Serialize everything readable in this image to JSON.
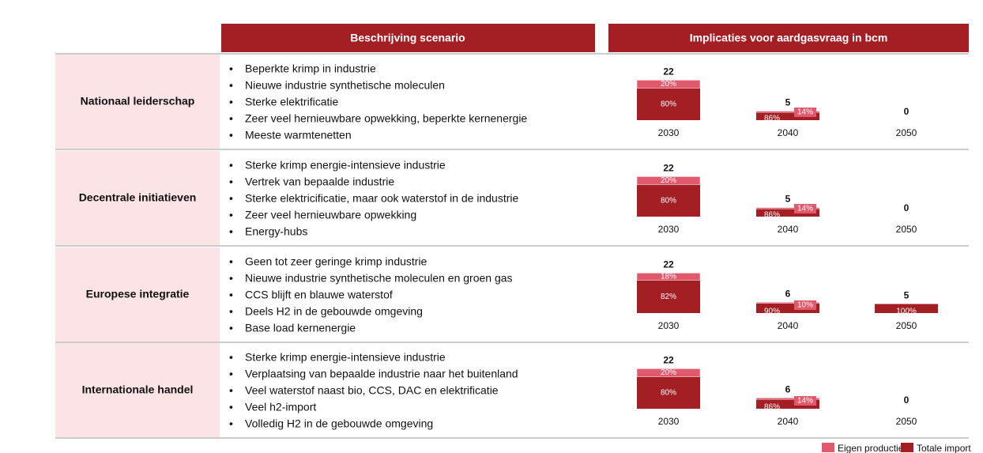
{
  "header": {
    "description": "Beschrijving scenario",
    "implications": "Implicaties voor aardgasvraag in bcm"
  },
  "legend": [
    {
      "name": "Eigen productie",
      "color": "#e0596c"
    },
    {
      "name": "Totale import",
      "color": "#a31f24"
    }
  ],
  "scenarios": [
    {
      "name": "Nationaal leiderschap",
      "bullets": [
        "Beperkte krimp in industrie",
        "Nieuwe industrie synthetische moleculen",
        "Sterke elektrificatie",
        "Zeer veel hernieuwbare opwekking, beperkte kernenergie",
        "Meeste warmtenetten"
      ],
      "chart": {
        "type": "bar",
        "categories": [
          "2030",
          "2040",
          "2050"
        ],
        "totals": [
          22,
          5,
          0
        ],
        "own": [
          20,
          14,
          null
        ],
        "own_labels": [
          "20%",
          "14%",
          null
        ],
        "import": [
          80,
          86,
          null
        ],
        "import_labels": [
          "80%",
          "86%",
          null
        ]
      }
    },
    {
      "name": "Decentrale initiatieven",
      "bullets": [
        "Sterke krimp energie-intensieve industrie",
        "Vertrek van bepaalde industrie",
        "Sterke elektricificatie, maar ook waterstof in de industrie",
        "Zeer veel hernieuwbare opwekking",
        "Energy-hubs"
      ],
      "chart": {
        "type": "bar",
        "categories": [
          "2030",
          "2040",
          "2050"
        ],
        "totals": [
          22,
          5,
          0
        ],
        "own": [
          20,
          14,
          null
        ],
        "own_labels": [
          "20%",
          "14%",
          null
        ],
        "import": [
          80,
          86,
          null
        ],
        "import_labels": [
          "80%",
          "86%",
          null
        ]
      }
    },
    {
      "name": "Europese integratie",
      "bullets": [
        "Geen tot zeer geringe krimp industrie",
        "Nieuwe industrie synthetische moleculen en groen gas",
        "CCS blijft en blauwe waterstof",
        "Deels H2 in de gebouwde omgeving",
        "Base load kernenergie"
      ],
      "chart": {
        "type": "bar",
        "categories": [
          "2030",
          "2040",
          "2050"
        ],
        "totals": [
          22,
          6,
          5
        ],
        "own": [
          18,
          10,
          null
        ],
        "own_labels": [
          "18%",
          "10%",
          null
        ],
        "import": [
          82,
          90,
          100
        ],
        "import_labels": [
          "82%",
          "90%",
          "100%"
        ]
      }
    },
    {
      "name": "Internationale handel",
      "bullets": [
        "Sterke krimp energie-intensieve industrie",
        "Verplaatsing van bepaalde industrie naar het buitenland",
        "Veel waterstof naast bio, CCS, DAC en elektrificatie",
        "Veel h2-import",
        "Volledig H2 in de gebouwde omgeving"
      ],
      "chart": {
        "type": "bar",
        "categories": [
          "2030",
          "2040",
          "2050"
        ],
        "totals": [
          22,
          6,
          0
        ],
        "own": [
          20,
          14,
          null
        ],
        "own_labels": [
          "20%",
          "14%",
          null
        ],
        "import": [
          80,
          86,
          null
        ],
        "import_labels": [
          "80%",
          "86%",
          null
        ]
      }
    }
  ]
}
